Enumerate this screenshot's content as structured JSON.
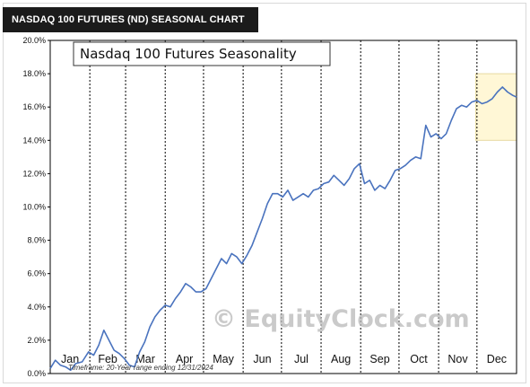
{
  "header": {
    "title": "NASDAQ 100 FUTURES (ND) SEASONAL CHART"
  },
  "colors": {
    "line": "#4a73be",
    "highlight": "#fff7d6",
    "highlight_border": "#e6d9a0",
    "grid": "#000000"
  },
  "chart_data": {
    "type": "line",
    "title": "Nasdaq 100 Futures Seasonality",
    "subtitle": "Timeframe: 20-Year range ending 12/31/2024",
    "watermark": "© EquityClock.com",
    "xlabel": "",
    "ylabel": "",
    "ylim": [
      0,
      20
    ],
    "yticks": [
      "0.0%",
      "2.0%",
      "4.0%",
      "6.0%",
      "8.0%",
      "10.0%",
      "12.0%",
      "14.0%",
      "16.0%",
      "18.0%",
      "20.0%"
    ],
    "months": [
      "Jan",
      "Feb",
      "Mar",
      "Apr",
      "May",
      "Jun",
      "Jul",
      "Aug",
      "Sep",
      "Oct",
      "Nov",
      "Dec"
    ],
    "grid": "vertical dashed at month boundaries",
    "highlight": {
      "day_start": 333,
      "day_end": 365,
      "y_range": [
        14,
        18
      ]
    },
    "series": [
      {
        "x_day": [
          0,
          4,
          8,
          12,
          16,
          20,
          25,
          30,
          34,
          38,
          42,
          46,
          50,
          54,
          58,
          62,
          66,
          70,
          74,
          78,
          82,
          86,
          90,
          94,
          98,
          102,
          106,
          110,
          114,
          118,
          122,
          126,
          130,
          134,
          138,
          142,
          146,
          150,
          154,
          158,
          162,
          166,
          170,
          174,
          178,
          182,
          186,
          190,
          194,
          198,
          202,
          206,
          210,
          214,
          218,
          222,
          226,
          230,
          234,
          238,
          242,
          246,
          250,
          254,
          258,
          262,
          266,
          270,
          274,
          278,
          282,
          286,
          290,
          294,
          298,
          302,
          306,
          310,
          314,
          318,
          322,
          326,
          330,
          334,
          338,
          342,
          346,
          350,
          354,
          358,
          362,
          365
        ],
        "y": [
          0.3,
          0.8,
          0.5,
          0.4,
          0.2,
          0.6,
          0.7,
          1.3,
          1.1,
          1.7,
          2.6,
          2.0,
          1.4,
          1.2,
          0.9,
          0.5,
          0.4,
          1.3,
          1.9,
          2.8,
          3.4,
          3.8,
          4.1,
          4.0,
          4.5,
          4.9,
          5.4,
          5.2,
          4.9,
          4.9,
          5.1,
          5.7,
          6.3,
          6.9,
          6.6,
          7.2,
          7.0,
          6.6,
          7.1,
          7.7,
          8.5,
          9.3,
          10.2,
          10.8,
          10.8,
          10.6,
          11.0,
          10.4,
          10.6,
          10.8,
          10.6,
          11.0,
          11.1,
          11.4,
          11.5,
          11.9,
          11.6,
          11.3,
          11.7,
          12.3,
          12.6,
          11.4,
          11.6,
          11.0,
          11.3,
          11.1,
          11.6,
          12.2,
          12.3,
          12.5,
          12.8,
          13.0,
          12.9,
          14.9,
          14.2,
          14.4,
          14.1,
          14.4,
          15.2,
          15.9,
          16.1,
          16.0,
          16.3,
          16.4,
          16.2,
          16.3,
          16.5,
          16.9,
          17.2,
          16.9,
          16.7,
          16.6
        ]
      }
    ]
  }
}
